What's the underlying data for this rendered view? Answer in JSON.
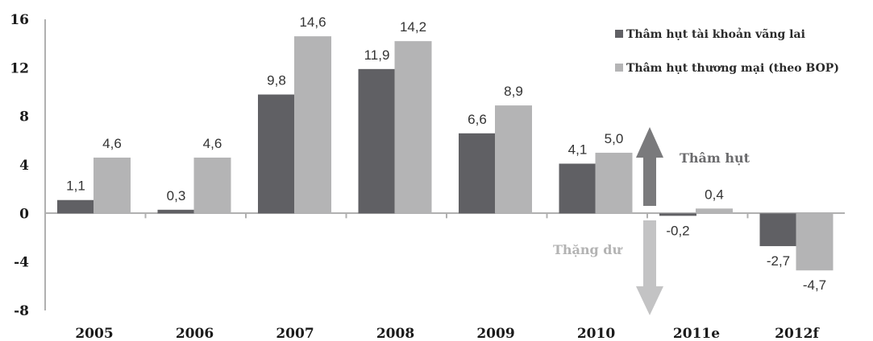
{
  "chart_data": {
    "type": "bar",
    "categories": [
      "2005",
      "2006",
      "2007",
      "2008",
      "2009",
      "2010",
      "2011e",
      "2012f"
    ],
    "series": [
      {
        "name": "Thâm hụt tài khoản vãng lai",
        "color": "#606064",
        "values": [
          1.1,
          0.3,
          9.8,
          11.9,
          6.6,
          4.1,
          -0.2,
          -2.7
        ],
        "labels": [
          "1,1",
          "0,3",
          "9,8",
          "11,9",
          "6,6",
          "4,1",
          "-0,2",
          "-2,7"
        ]
      },
      {
        "name": "Thâm hụt thương mại (theo BOP)",
        "color": "#b4b4b5",
        "values": [
          4.6,
          4.6,
          14.6,
          14.2,
          8.9,
          5.0,
          0.4,
          -4.7
        ],
        "labels": [
          "4,6",
          "4,6",
          "14,6",
          "14,2",
          "8,9",
          "5,0",
          "0,4",
          "-4,7"
        ]
      }
    ],
    "ylim": [
      -8,
      16
    ],
    "yticks": [
      "16",
      "12",
      "8",
      "4",
      "0",
      "-4",
      "-8"
    ],
    "ytick_values": [
      16,
      12,
      8,
      4,
      0,
      -4,
      -8
    ],
    "legend_position": "top-right",
    "grid": false,
    "annotations": {
      "deficit": {
        "text": "Thâm hụt",
        "color": "#6b6b6d"
      },
      "surplus": {
        "text": "Thặng dư",
        "color": "#b3b3b3"
      }
    }
  }
}
